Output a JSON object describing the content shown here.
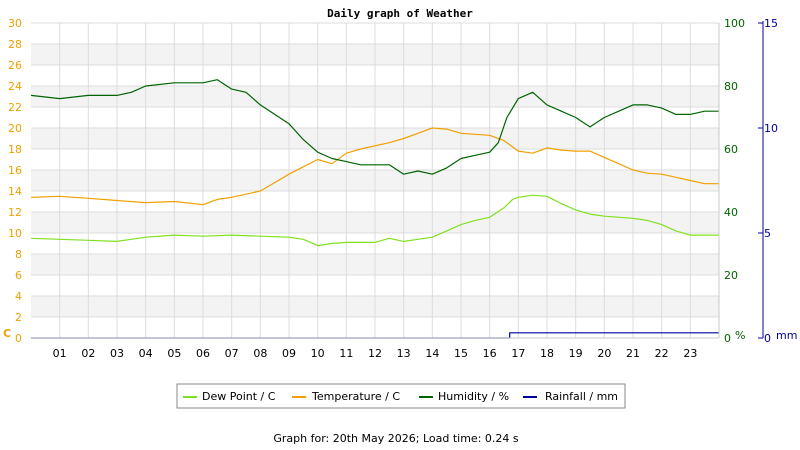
{
  "chart_data": {
    "type": "line",
    "title": "Daily graph of Weather",
    "footer": "Graph for: 20th May 2026; Load time: 0.24 s",
    "x_tick_labels": [
      "01",
      "02",
      "03",
      "04",
      "05",
      "06",
      "07",
      "08",
      "09",
      "10",
      "11",
      "12",
      "13",
      "14",
      "15",
      "16",
      "17",
      "18",
      "19",
      "20",
      "21",
      "22",
      "23"
    ],
    "axes": {
      "left": {
        "unit_label": "C",
        "color": "#f0a000",
        "range": [
          0,
          30
        ],
        "ticks": [
          0,
          2,
          4,
          6,
          8,
          10,
          12,
          14,
          16,
          18,
          20,
          22,
          24,
          26,
          28,
          30
        ]
      },
      "right1": {
        "unit_label": "%",
        "color": "#006400",
        "range": [
          0,
          100
        ],
        "ticks": [
          0,
          20,
          40,
          60,
          80,
          100
        ]
      },
      "right2": {
        "unit_label": "mm",
        "color": "#0000a0",
        "range": [
          0,
          15
        ],
        "ticks": [
          0,
          5,
          10,
          15
        ]
      }
    },
    "grid": true,
    "legend_position": "bottom",
    "series": [
      {
        "name": "Dew Point / C",
        "axis": "left",
        "color": "#80e020",
        "points": [
          [
            0,
            9.5
          ],
          [
            1,
            9.4
          ],
          [
            2,
            9.3
          ],
          [
            3,
            9.2
          ],
          [
            4,
            9.6
          ],
          [
            5,
            9.8
          ],
          [
            6,
            9.7
          ],
          [
            7,
            9.8
          ],
          [
            8,
            9.7
          ],
          [
            9,
            9.6
          ],
          [
            9.5,
            9.4
          ],
          [
            10,
            8.8
          ],
          [
            10.5,
            9.0
          ],
          [
            11,
            9.1
          ],
          [
            12,
            9.1
          ],
          [
            12.5,
            9.5
          ],
          [
            13,
            9.2
          ],
          [
            13.5,
            9.4
          ],
          [
            14,
            9.6
          ],
          [
            14.5,
            10.2
          ],
          [
            15,
            10.8
          ],
          [
            15.5,
            11.2
          ],
          [
            16,
            11.5
          ],
          [
            16.5,
            12.4
          ],
          [
            16.8,
            13.2
          ],
          [
            17,
            13.4
          ],
          [
            17.5,
            13.6
          ],
          [
            18,
            13.5
          ],
          [
            18.5,
            12.8
          ],
          [
            19,
            12.2
          ],
          [
            19.5,
            11.8
          ],
          [
            20,
            11.6
          ],
          [
            21,
            11.4
          ],
          [
            21.5,
            11.2
          ],
          [
            22,
            10.8
          ],
          [
            22.5,
            10.2
          ],
          [
            23,
            9.8
          ],
          [
            24,
            9.8
          ]
        ]
      },
      {
        "name": "Temperature / C",
        "axis": "left",
        "color": "#f0a000",
        "points": [
          [
            0,
            13.4
          ],
          [
            1,
            13.5
          ],
          [
            2,
            13.3
          ],
          [
            3,
            13.1
          ],
          [
            4,
            12.9
          ],
          [
            5,
            13.0
          ],
          [
            6,
            12.7
          ],
          [
            6.5,
            13.2
          ],
          [
            7,
            13.4
          ],
          [
            7.5,
            13.7
          ],
          [
            8,
            14.0
          ],
          [
            8.5,
            14.8
          ],
          [
            9,
            15.6
          ],
          [
            9.5,
            16.3
          ],
          [
            10,
            17.0
          ],
          [
            10.5,
            16.6
          ],
          [
            11,
            17.6
          ],
          [
            11.5,
            18.0
          ],
          [
            12,
            18.3
          ],
          [
            12.5,
            18.6
          ],
          [
            13,
            19.0
          ],
          [
            13.5,
            19.5
          ],
          [
            14,
            20.0
          ],
          [
            14.5,
            19.9
          ],
          [
            15,
            19.5
          ],
          [
            15.5,
            19.4
          ],
          [
            16,
            19.3
          ],
          [
            16.5,
            18.8
          ],
          [
            17,
            17.8
          ],
          [
            17.5,
            17.6
          ],
          [
            18,
            18.1
          ],
          [
            18.5,
            17.9
          ],
          [
            19,
            17.8
          ],
          [
            19.5,
            17.8
          ],
          [
            20,
            17.2
          ],
          [
            20.5,
            16.6
          ],
          [
            21,
            16.0
          ],
          [
            21.5,
            15.7
          ],
          [
            22,
            15.6
          ],
          [
            22.5,
            15.3
          ],
          [
            23,
            15.0
          ],
          [
            23.5,
            14.7
          ],
          [
            24,
            14.7
          ]
        ]
      },
      {
        "name": "Humidity / %",
        "axis": "right1",
        "color": "#006400",
        "points": [
          [
            0,
            77
          ],
          [
            1,
            76
          ],
          [
            2,
            77
          ],
          [
            3,
            77
          ],
          [
            3.5,
            78
          ],
          [
            4,
            80
          ],
          [
            5,
            81
          ],
          [
            6,
            81
          ],
          [
            6.5,
            82
          ],
          [
            7,
            79
          ],
          [
            7.5,
            78
          ],
          [
            8,
            74
          ],
          [
            8.5,
            71
          ],
          [
            9,
            68
          ],
          [
            9.5,
            63
          ],
          [
            10,
            59
          ],
          [
            10.5,
            57
          ],
          [
            11,
            56
          ],
          [
            11.5,
            55
          ],
          [
            12,
            55
          ],
          [
            12.5,
            55
          ],
          [
            13,
            52
          ],
          [
            13.5,
            53
          ],
          [
            14,
            52
          ],
          [
            14.5,
            54
          ],
          [
            15,
            57
          ],
          [
            15.5,
            58
          ],
          [
            16,
            59
          ],
          [
            16.3,
            62
          ],
          [
            16.6,
            70
          ],
          [
            17,
            76
          ],
          [
            17.5,
            78
          ],
          [
            18,
            74
          ],
          [
            18.5,
            72
          ],
          [
            19,
            70
          ],
          [
            19.5,
            67
          ],
          [
            20,
            70
          ],
          [
            20.5,
            72
          ],
          [
            21,
            74
          ],
          [
            21.5,
            74
          ],
          [
            22,
            73
          ],
          [
            22.5,
            71
          ],
          [
            23,
            71
          ],
          [
            23.5,
            72
          ],
          [
            24,
            72
          ]
        ]
      },
      {
        "name": "Rainfall / mm",
        "axis": "right2",
        "color": "#0000a0",
        "points": [
          [
            0,
            0
          ],
          [
            16.7,
            0
          ],
          [
            16.7,
            0.25
          ],
          [
            24,
            0.25
          ]
        ]
      }
    ]
  }
}
